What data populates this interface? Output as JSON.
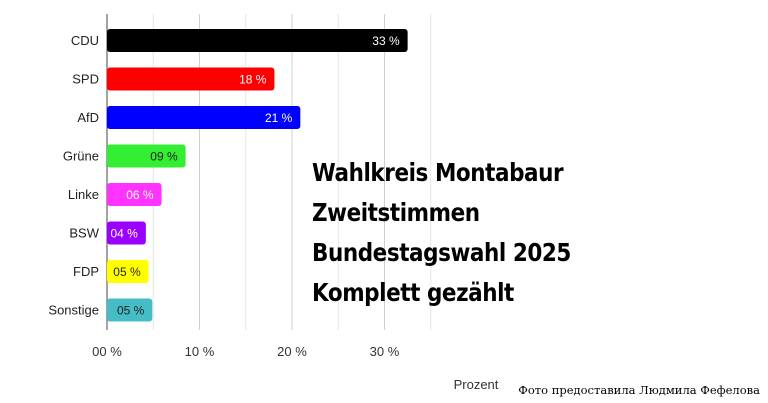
{
  "chart_data": {
    "type": "bar",
    "orientation": "horizontal",
    "categories": [
      "CDU",
      "SPD",
      "AfD",
      "Grüne",
      "Linke",
      "BSW",
      "FDP",
      "Sonstige"
    ],
    "values": [
      32.5,
      18.1,
      20.9,
      8.5,
      5.9,
      4.2,
      4.5,
      4.9
    ],
    "value_labels": [
      "33 %",
      "18 %",
      "21 %",
      "09 %",
      "06 %",
      "04 %",
      "05 %",
      "05 %"
    ],
    "colors": [
      "#000000",
      "#ff0000",
      "#0000ff",
      "#33ee33",
      "#ff33ff",
      "#9900ff",
      "#ffff00",
      "#46bdc6"
    ],
    "label_colors": [
      "#ffffff",
      "#ffffff",
      "#ffffff",
      "#222222",
      "#ffffff",
      "#ffffff",
      "#222222",
      "#222222"
    ],
    "xlim": [
      0,
      35
    ],
    "xticks": [
      0,
      10,
      20,
      30
    ],
    "xtick_labels": [
      "00 %",
      "10 %",
      "20 %",
      "30 %"
    ],
    "grid": true,
    "xlabel": "Prozent",
    "ylabel": "",
    "title": ""
  },
  "overlay": {
    "lines": [
      "Wahlkreis Montabaur",
      "Zweitstimmen",
      "Bundestagswahl 2025",
      "Komplett gezählt"
    ]
  },
  "credit": "Фото предоставила Людмила Фефелова"
}
